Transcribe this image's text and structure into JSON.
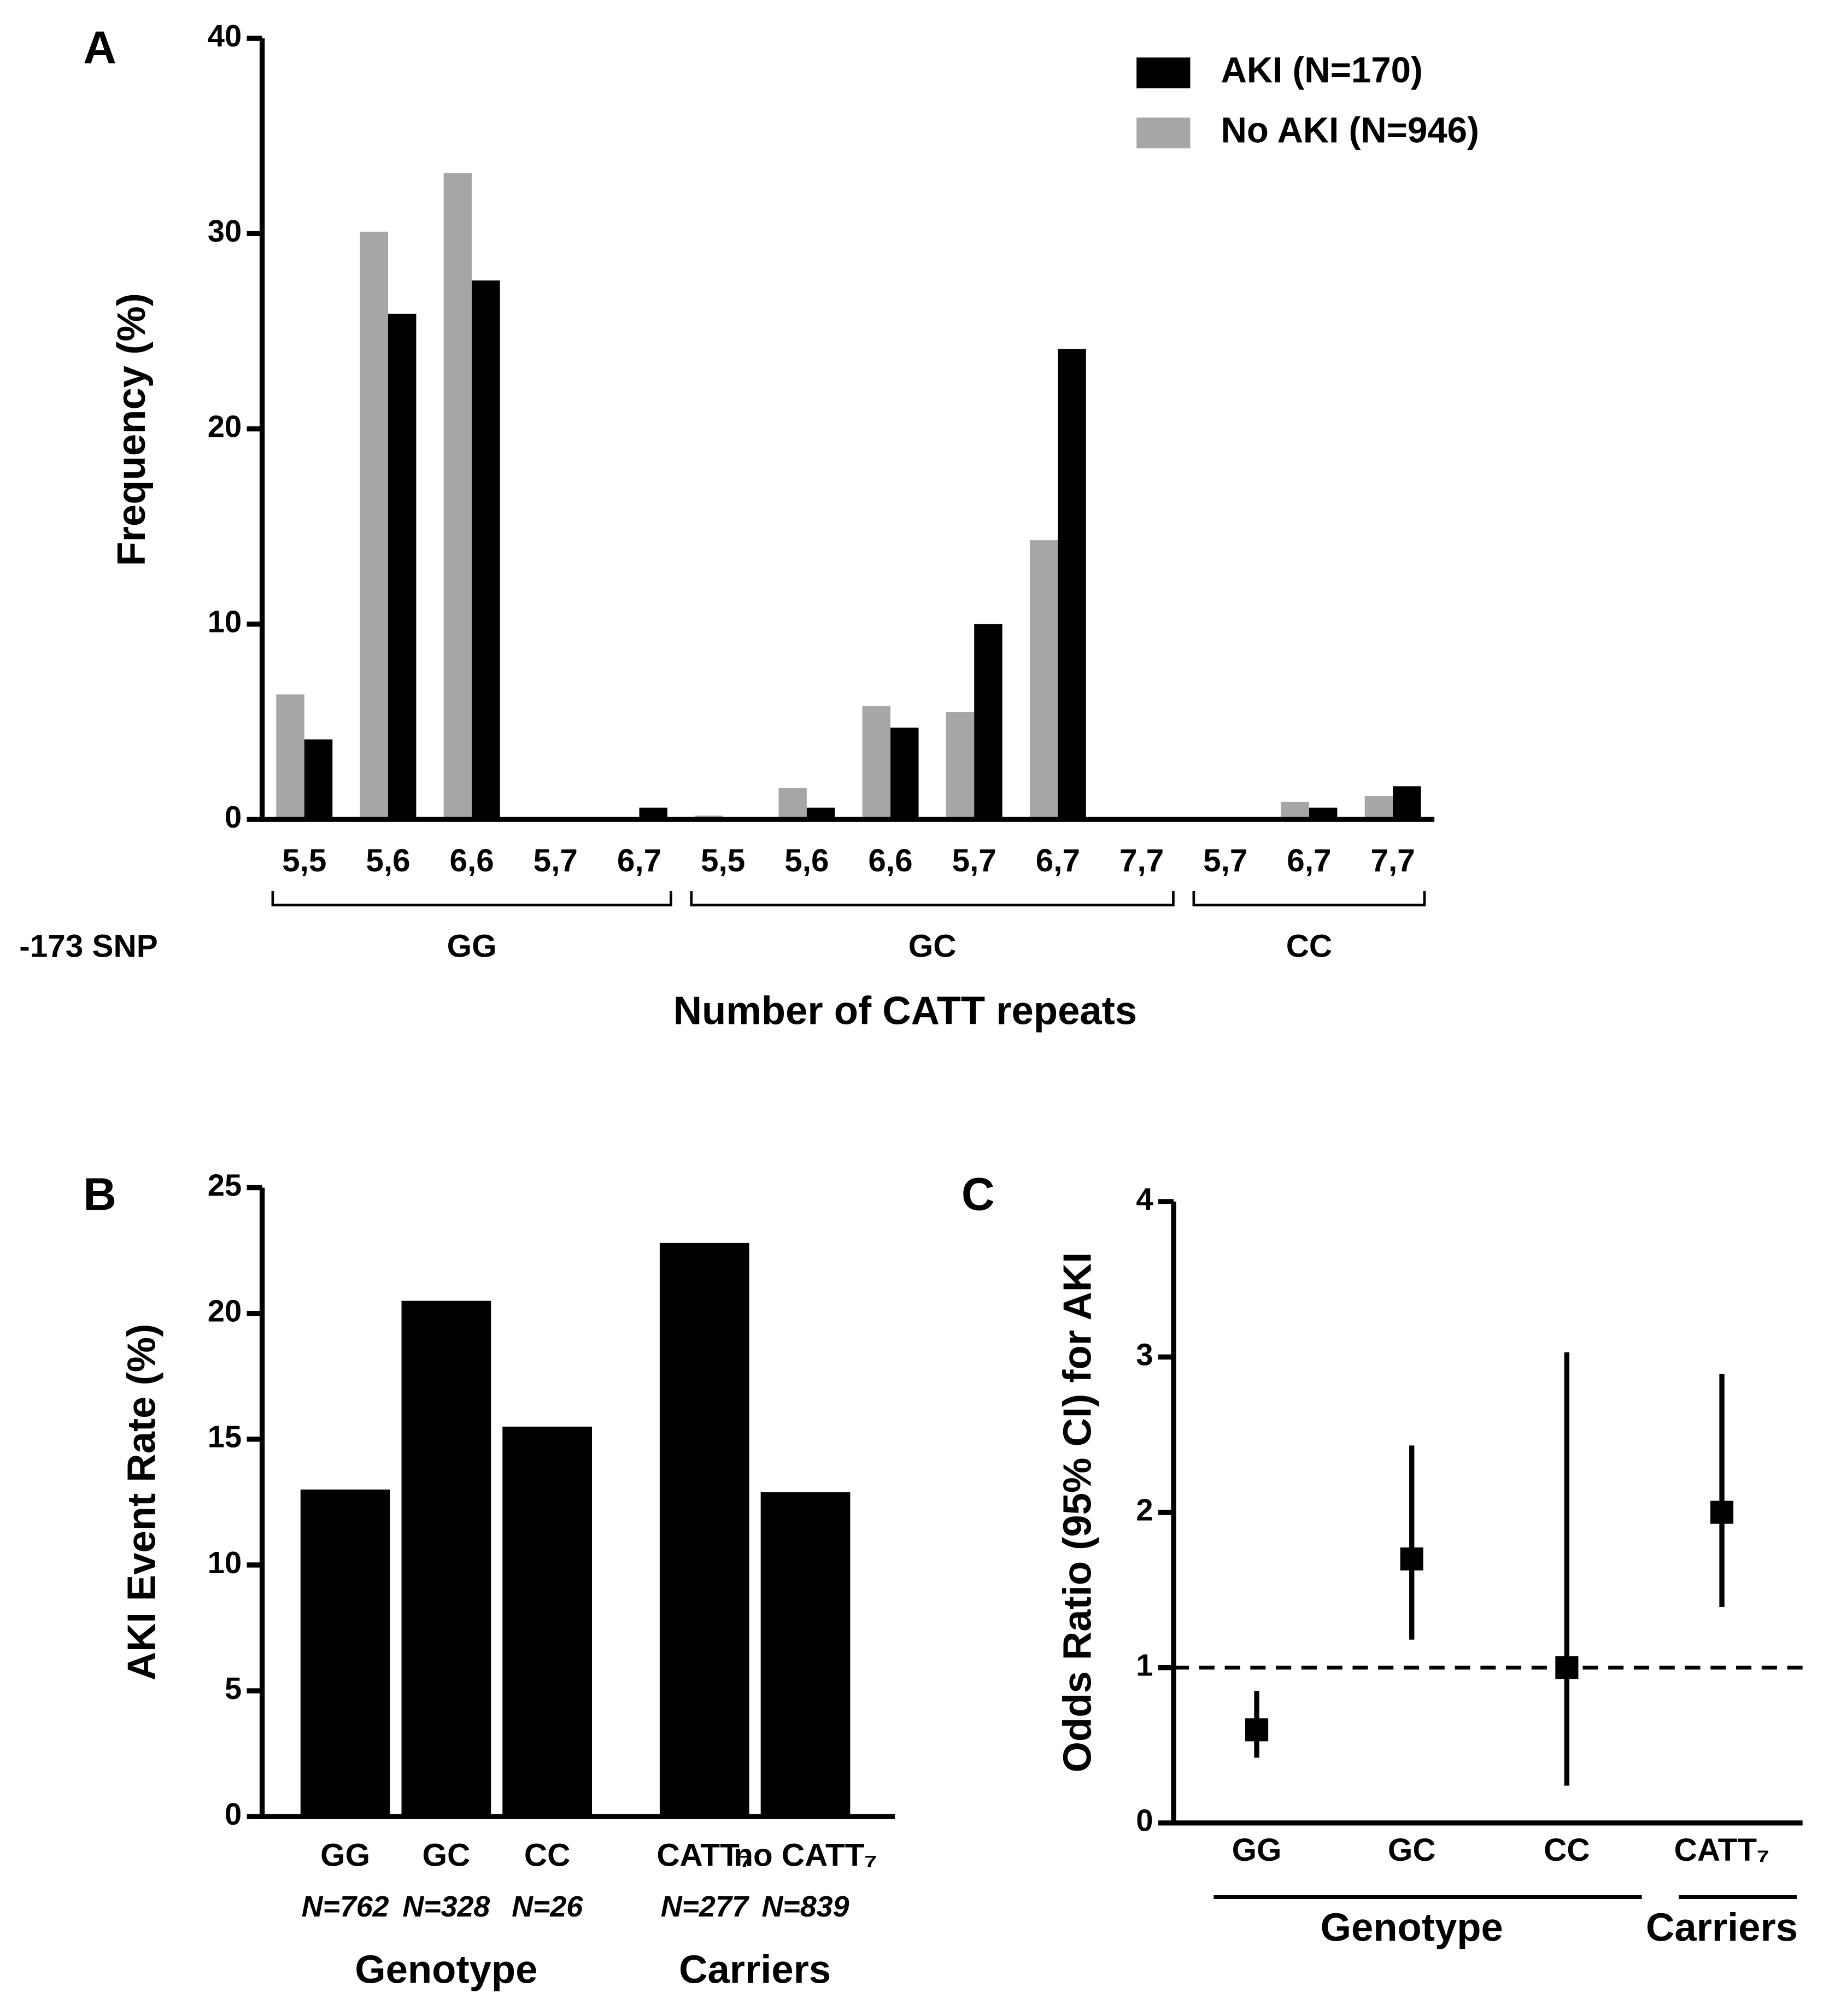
{
  "chart_data": [
    {
      "type": "bar",
      "label": "A",
      "ylabel": "Frequency (%)",
      "xlabel": "Number of CATT repeats",
      "group_axis_label": "-173 SNP",
      "categories": [
        "5,5",
        "5,6",
        "6,6",
        "5,7",
        "6,7",
        "5,5",
        "5,6",
        "6,6",
        "5,7",
        "6,7",
        "7,7",
        "5,7",
        "6,7",
        "7,7"
      ],
      "groups": [
        {
          "name": "GG",
          "size": 5
        },
        {
          "name": "GC",
          "size": 6
        },
        {
          "name": "CC",
          "size": 3
        }
      ],
      "series": [
        {
          "name": "No AKI (N=946)",
          "color": "#a6a6a6",
          "values": [
            6.4,
            30.1,
            33.1,
            0,
            0,
            0.2,
            1.6,
            5.8,
            5.5,
            14.3,
            0,
            0,
            0.9,
            1.2
          ]
        },
        {
          "name": "AKI (N=170)",
          "color": "#000000",
          "values": [
            4.1,
            25.9,
            27.6,
            0,
            0.6,
            0,
            0.6,
            4.7,
            10,
            24.1,
            0,
            0,
            0.6,
            1.7
          ]
        }
      ],
      "ylim": [
        0,
        40
      ],
      "yticks": [
        0,
        10,
        20,
        30,
        40
      ]
    },
    {
      "type": "bar",
      "label": "B",
      "ylabel": "AKI Event Rate (%)",
      "categories": [
        "GG",
        "GC",
        "CC",
        "CATT₇",
        "no CATT₇"
      ],
      "sample_sizes": [
        "N=762",
        "N=328",
        "N=26",
        "N=277",
        "N=839"
      ],
      "groups": [
        {
          "name": "Genotype",
          "size": 3
        },
        {
          "name": "Carriers",
          "size": 2
        }
      ],
      "values": [
        13.0,
        20.5,
        15.5,
        22.8,
        12.9
      ],
      "color": "#000000",
      "ylim": [
        0,
        25
      ],
      "yticks": [
        0,
        5,
        10,
        15,
        20,
        25
      ]
    },
    {
      "type": "errorbar",
      "label": "C",
      "ylabel": "Odds Ratio (95% CI) for AKI",
      "categories": [
        "GG",
        "GC",
        "CC",
        "CATT₇"
      ],
      "groups": [
        {
          "name": "Genotype",
          "size": 3
        },
        {
          "name": "Carriers",
          "size": 1
        }
      ],
      "values": [
        0.6,
        1.7,
        1.0,
        2.0
      ],
      "lower": [
        0.42,
        1.18,
        0.24,
        1.39
      ],
      "upper": [
        0.85,
        2.43,
        3.03,
        2.89
      ],
      "reference_line": 1,
      "color": "#000000",
      "ylim": [
        0,
        4
      ],
      "yticks": [
        0,
        1,
        2,
        3,
        4
      ]
    }
  ]
}
